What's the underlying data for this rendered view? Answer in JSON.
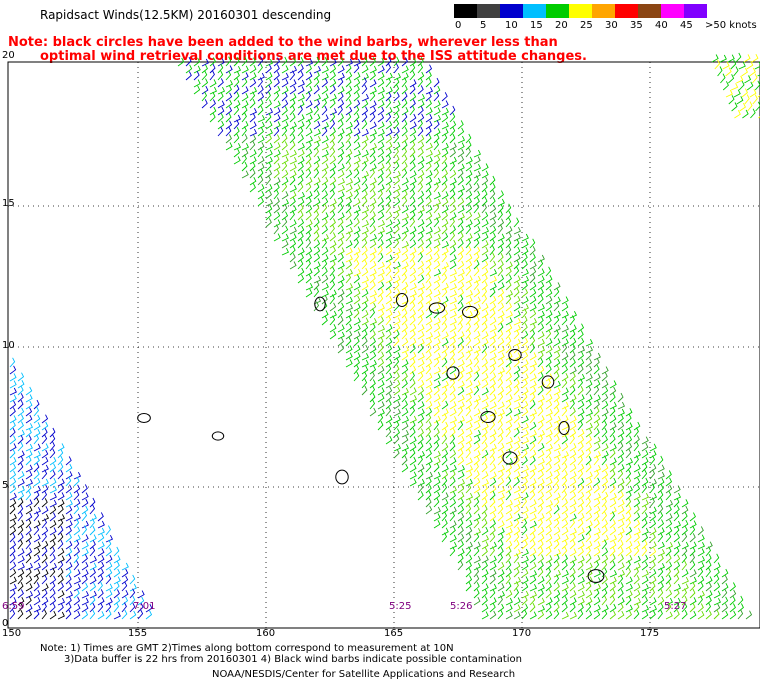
{
  "title": "Rapidsact Winds(12.5KM) 20160301 descending",
  "note_lines": [
    "Note: black circles have been added to the wind barbs, wherever less than",
    "optimal wind retrieval conditions are met due to the ISS attitude changes."
  ],
  "colorscale": {
    "labels": [
      "0",
      "5",
      "10",
      "15",
      "20",
      "25",
      "30",
      "35",
      "40",
      "45",
      ">50 knots"
    ],
    "colors": [
      "#000000",
      "#404040",
      "#0000cd",
      "#00bfff",
      "#00cc00",
      "#ffff00",
      "#ffa500",
      "#ff0000",
      "#8b4513",
      "#ff00ff",
      "#8000ff"
    ]
  },
  "map": {
    "lon_ticks": [
      "150",
      "155",
      "160",
      "165",
      "170",
      "175"
    ],
    "lat_ticks": [
      "0",
      "5",
      "10",
      "15",
      "20"
    ],
    "time_labels": [
      "6:59",
      "7:01",
      "5:25",
      "5:26",
      "5:27"
    ]
  },
  "footer": {
    "line1": "Note: 1) Times are GMT 2)Times along bottom correspond to measurement at 10N",
    "line2": "3)Data buffer is 22 hrs from 20160301 4) Black wind barbs indicate possible contamination",
    "line3": "NOAA/NESDIS/Center for Satellite Applications and Research"
  }
}
